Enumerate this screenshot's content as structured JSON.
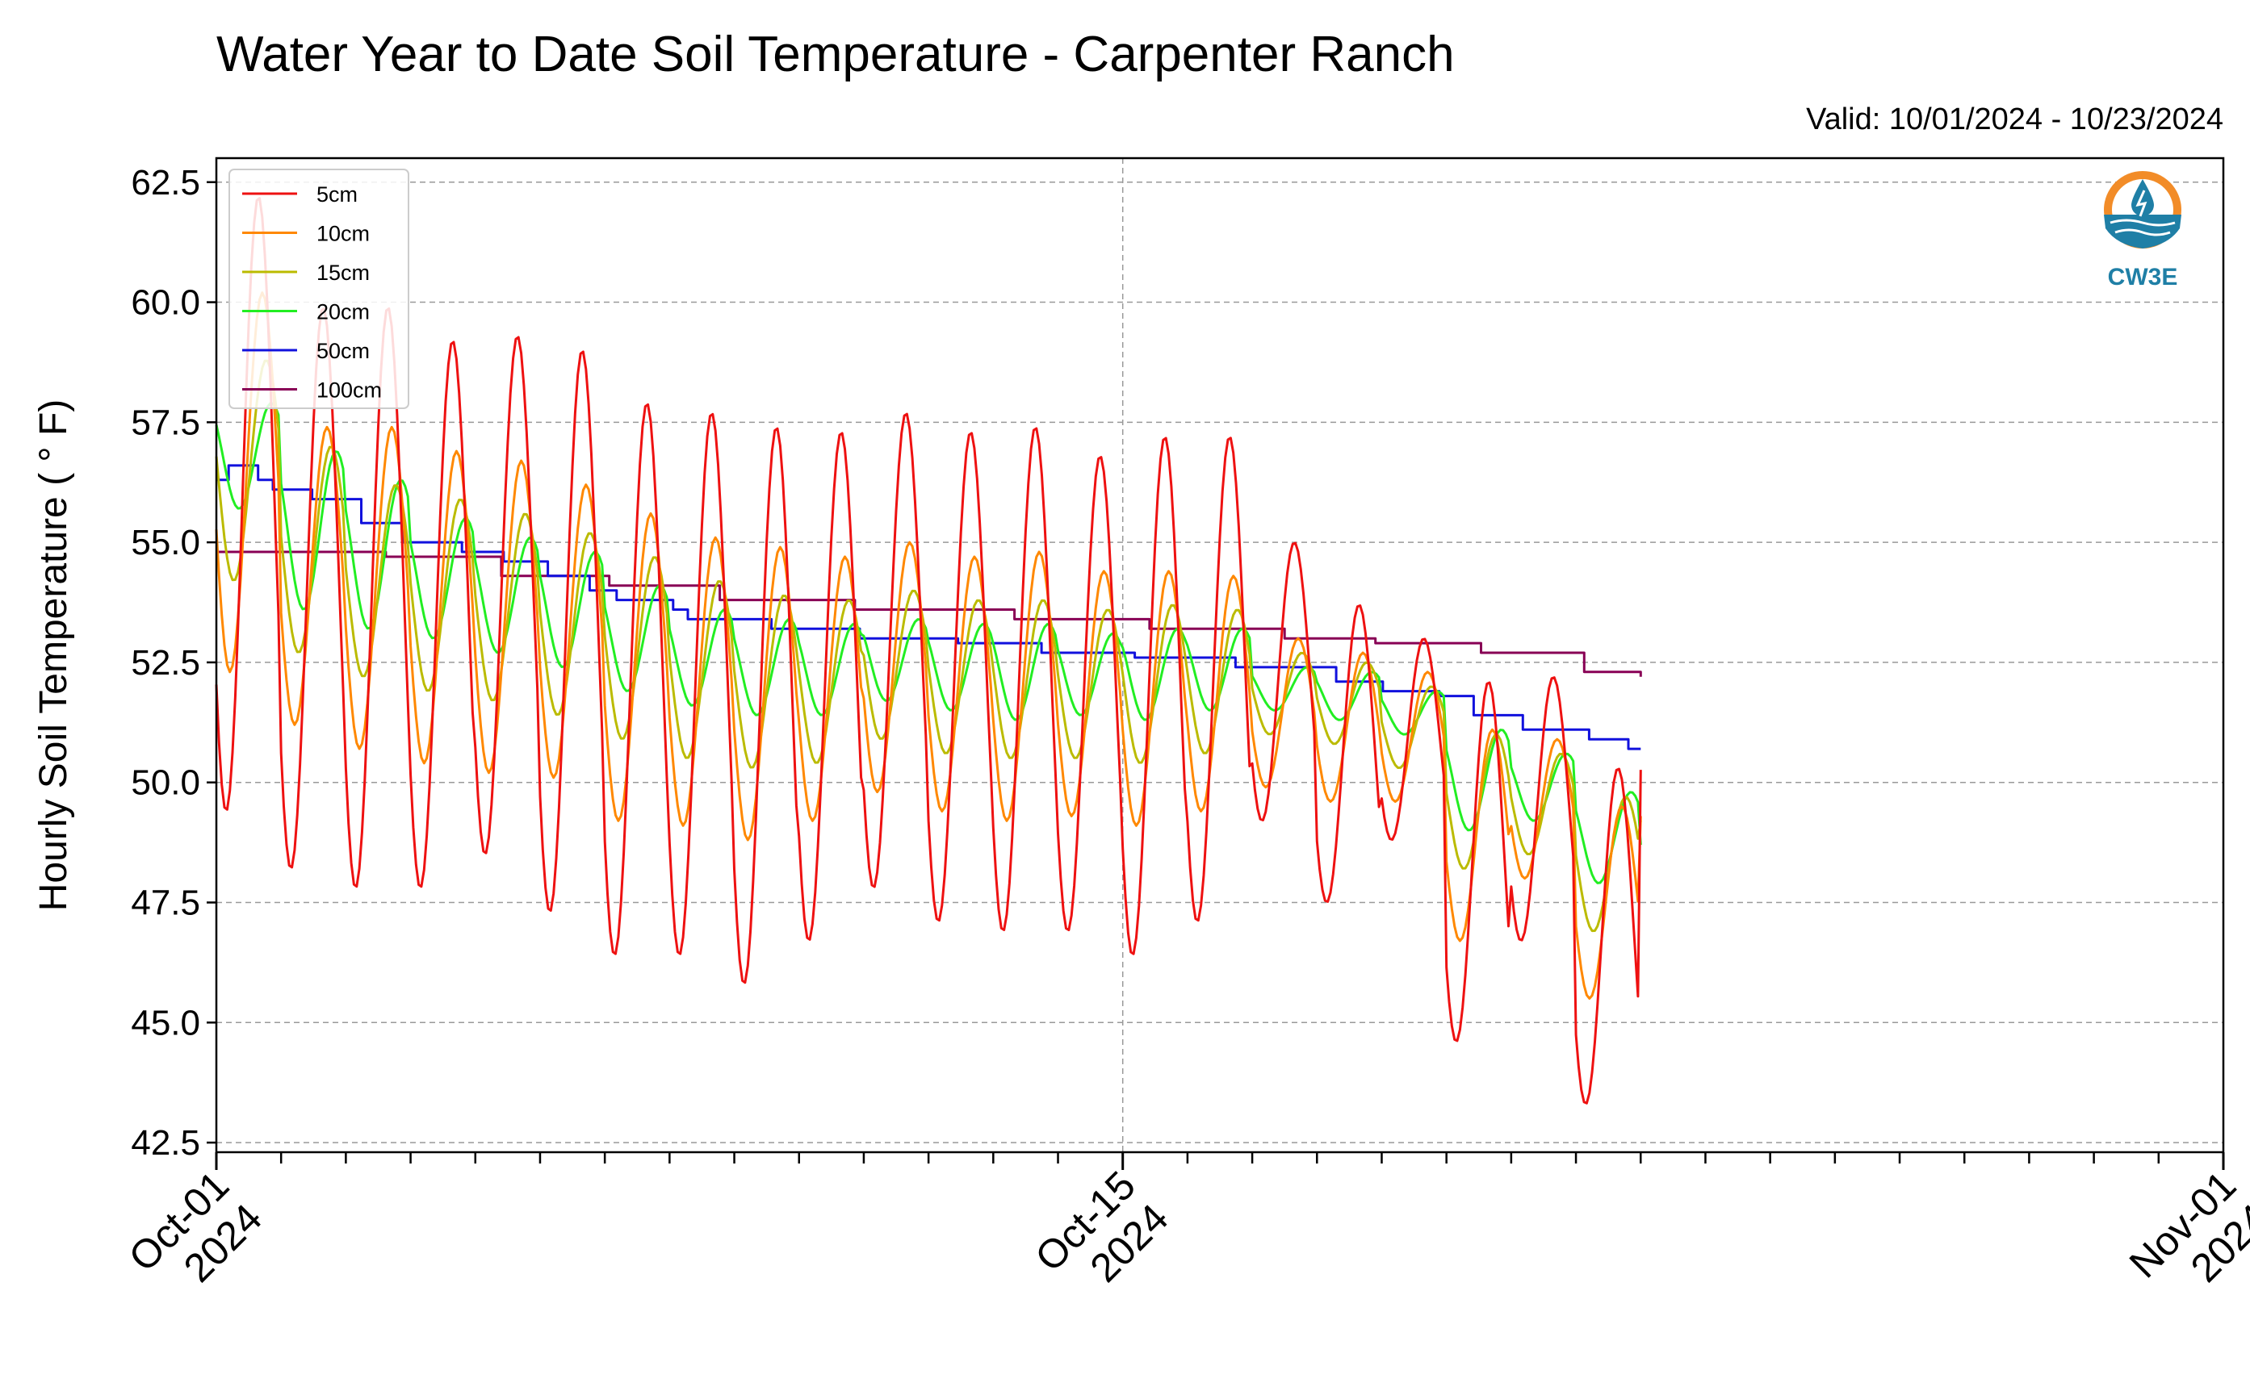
{
  "chart_data": {
    "type": "line",
    "title": "Water Year to Date Soil Temperature - Carpenter Ranch",
    "subtitle": "Valid: 10/01/2024 - 10/23/2024",
    "ylabel": "Hourly Soil Temperature ( ° F)",
    "xlabel": "",
    "ylim": [
      42.3,
      63.0
    ],
    "xlim": [
      "2024-10-01",
      "2024-11-01"
    ],
    "y_ticks": [
      "42.5",
      "45.0",
      "47.5",
      "50.0",
      "52.5",
      "55.0",
      "57.5",
      "60.0",
      "62.5"
    ],
    "x_ticks": [
      {
        "date": "2024-10-01",
        "line1": "Oct-01",
        "line2": "2024"
      },
      {
        "date": "2024-10-15",
        "line1": "Oct-15",
        "line2": "2024"
      },
      {
        "date": "2024-11-01",
        "line1": "Nov-01",
        "line2": "2024"
      }
    ],
    "grid": true,
    "legend_position": "top-left",
    "logo_text": "CW3E",
    "series": [
      {
        "name": "5cm",
        "color": "#ee1111",
        "daily_max": [
          62.2,
          59.9,
          59.9,
          59.2,
          59.3,
          59.0,
          57.9,
          57.7,
          57.4,
          57.3,
          57.7,
          57.3,
          57.4,
          56.8,
          57.2,
          57.2,
          55.0,
          53.7,
          53.0,
          52.1,
          52.2,
          50.3,
          50.5
        ],
        "daily_min": [
          49.4,
          48.2,
          47.8,
          47.8,
          48.5,
          47.3,
          46.4,
          46.4,
          45.8,
          46.7,
          47.8,
          47.1,
          46.9,
          46.9,
          46.4,
          47.1,
          49.2,
          47.5,
          48.8,
          44.6,
          46.7,
          43.3,
          50.2
        ]
      },
      {
        "name": "10cm",
        "color": "#ff8800",
        "daily_max": [
          60.2,
          57.4,
          57.4,
          56.9,
          56.7,
          56.2,
          55.6,
          55.1,
          54.9,
          54.7,
          55.0,
          54.7,
          54.8,
          54.4,
          54.4,
          54.3,
          53.0,
          52.7,
          52.3,
          51.1,
          50.9,
          49.5,
          49.3
        ],
        "daily_min": [
          52.3,
          51.2,
          50.7,
          50.4,
          50.2,
          50.1,
          49.2,
          49.1,
          48.8,
          49.2,
          49.8,
          49.4,
          49.2,
          49.3,
          49.1,
          49.4,
          49.9,
          49.6,
          49.6,
          46.7,
          48.0,
          45.5,
          49.3
        ]
      },
      {
        "name": "15cm",
        "color": "#bbbb00",
        "daily_max": [
          58.8,
          57.0,
          56.2,
          55.9,
          55.6,
          55.2,
          54.7,
          54.2,
          53.9,
          53.8,
          54.0,
          53.8,
          53.8,
          53.6,
          53.7,
          53.6,
          52.7,
          52.5,
          52.0,
          51.0,
          50.6,
          49.7,
          49.2
        ],
        "daily_min": [
          54.2,
          52.7,
          52.2,
          51.9,
          51.7,
          51.4,
          50.9,
          50.5,
          50.3,
          50.4,
          50.9,
          50.6,
          50.5,
          50.5,
          50.4,
          50.6,
          51.0,
          50.8,
          50.3,
          48.2,
          48.5,
          46.9,
          49.2
        ]
      },
      {
        "name": "20cm",
        "color": "#22ee22",
        "daily_max": [
          57.9,
          56.9,
          56.3,
          55.5,
          55.1,
          54.8,
          54.1,
          53.6,
          53.4,
          53.3,
          53.4,
          53.3,
          53.3,
          53.1,
          53.2,
          53.2,
          52.4,
          52.3,
          51.9,
          51.1,
          50.6,
          49.8,
          48.7
        ],
        "daily_min": [
          55.7,
          53.6,
          53.2,
          53.0,
          52.7,
          52.4,
          51.9,
          51.6,
          51.4,
          51.4,
          51.7,
          51.5,
          51.3,
          51.4,
          51.3,
          51.5,
          51.5,
          51.3,
          51.0,
          49.0,
          49.2,
          47.9,
          48.7
        ]
      },
      {
        "name": "50cm",
        "color": "#1111dd",
        "steps": [
          {
            "x": 0.0,
            "y": 56.3
          },
          {
            "x": 0.5,
            "y": 56.6
          },
          {
            "x": 1.7,
            "y": 56.3
          },
          {
            "x": 2.3,
            "y": 56.1
          },
          {
            "x": 3.9,
            "y": 55.9
          },
          {
            "x": 5.9,
            "y": 55.4
          },
          {
            "x": 7.6,
            "y": 55.0
          },
          {
            "x": 10.0,
            "y": 54.8
          },
          {
            "x": 11.7,
            "y": 54.6
          },
          {
            "x": 13.5,
            "y": 54.3
          },
          {
            "x": 15.2,
            "y": 54.0
          },
          {
            "x": 16.3,
            "y": 53.8
          },
          {
            "x": 18.6,
            "y": 53.6
          },
          {
            "x": 19.2,
            "y": 53.4
          },
          {
            "x": 22.6,
            "y": 53.2
          },
          {
            "x": 26.2,
            "y": 53.0
          },
          {
            "x": 30.2,
            "y": 52.9
          },
          {
            "x": 33.6,
            "y": 52.7
          },
          {
            "x": 37.4,
            "y": 52.6
          },
          {
            "x": 41.5,
            "y": 52.4
          },
          {
            "x": 45.6,
            "y": 52.1
          },
          {
            "x": 47.5,
            "y": 51.9
          },
          {
            "x": 49.8,
            "y": 51.8
          },
          {
            "x": 51.2,
            "y": 51.4
          },
          {
            "x": 53.2,
            "y": 51.1
          },
          {
            "x": 55.9,
            "y": 50.9
          },
          {
            "x": 57.5,
            "y": 50.7
          },
          {
            "x": 58.0,
            "y": 50.7
          }
        ]
      },
      {
        "name": "100cm",
        "color": "#880055",
        "steps": [
          {
            "x": 0.0,
            "y": 54.8
          },
          {
            "x": 6.9,
            "y": 54.7
          },
          {
            "x": 11.6,
            "y": 54.3
          },
          {
            "x": 16.0,
            "y": 54.1
          },
          {
            "x": 20.5,
            "y": 53.8
          },
          {
            "x": 26.0,
            "y": 53.6
          },
          {
            "x": 32.5,
            "y": 53.4
          },
          {
            "x": 38.0,
            "y": 53.2
          },
          {
            "x": 43.5,
            "y": 53.0
          },
          {
            "x": 47.2,
            "y": 52.9
          },
          {
            "x": 51.5,
            "y": 52.7
          },
          {
            "x": 55.7,
            "y": 52.3
          },
          {
            "x": 58.0,
            "y": 52.2
          }
        ]
      }
    ]
  }
}
